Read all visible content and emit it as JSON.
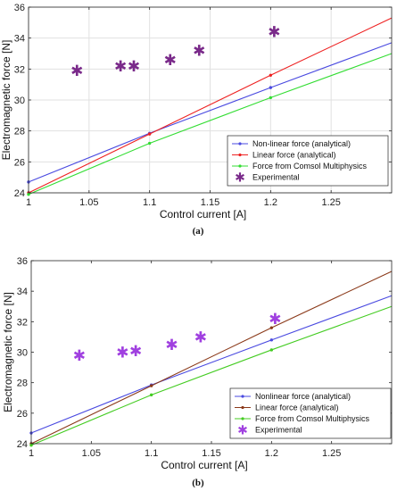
{
  "chart_data": [
    {
      "type": "line",
      "caption": "(a)",
      "xlabel": "Control current [A]",
      "ylabel": "Electromagnetic force [N]",
      "xlim": [
        1.0,
        1.3
      ],
      "ylim": [
        24,
        36
      ],
      "xticks": [
        "1",
        "1.05",
        "1.1",
        "1.15",
        "1.2",
        "1.25"
      ],
      "yticks": [
        "24",
        "26",
        "28",
        "30",
        "32",
        "34",
        "36"
      ],
      "grid": true,
      "legend_position": "lower-right",
      "series": [
        {
          "name": "Non-linear force (analytical)",
          "color": "#4a4ae0",
          "style": "line",
          "x": [
            1.0,
            1.1,
            1.2,
            1.3
          ],
          "y": [
            24.7,
            27.85,
            30.8,
            33.7
          ]
        },
        {
          "name": "Linear force (analytical)",
          "color": "#ee2222",
          "style": "line",
          "x": [
            1.0,
            1.1,
            1.2,
            1.3
          ],
          "y": [
            24.0,
            27.8,
            31.6,
            35.3
          ]
        },
        {
          "name": "Force from Comsol Multiphysics",
          "color": "#33dd33",
          "style": "line",
          "x": [
            1.0,
            1.1,
            1.2,
            1.3
          ],
          "y": [
            23.9,
            27.2,
            30.15,
            33.0
          ]
        },
        {
          "name": "Experimental",
          "color": "#7a2a8a",
          "style": "star",
          "x": [
            1.04,
            1.076,
            1.087,
            1.117,
            1.141,
            1.203
          ],
          "y": [
            31.9,
            32.2,
            32.2,
            32.6,
            33.2,
            34.4
          ]
        }
      ]
    },
    {
      "type": "line",
      "caption": "(b)",
      "xlabel": "Control current [A]",
      "ylabel": "Electromagnetic force [N]",
      "xlim": [
        1.0,
        1.3
      ],
      "ylim": [
        24,
        36
      ],
      "xticks": [
        "1",
        "1.05",
        "1.1",
        "1.15",
        "1.2",
        "1.25"
      ],
      "yticks": [
        "24",
        "26",
        "28",
        "30",
        "32",
        "34",
        "36"
      ],
      "grid": false,
      "legend_position": "lower-right",
      "series": [
        {
          "name": "Nonlinear force (analytical)",
          "color": "#4a4ae0",
          "style": "line",
          "x": [
            1.0,
            1.1,
            1.2,
            1.3
          ],
          "y": [
            24.7,
            27.85,
            30.8,
            33.7
          ]
        },
        {
          "name": "Linear force (analytical)",
          "color": "#8b3a1a",
          "style": "line",
          "x": [
            1.0,
            1.1,
            1.2,
            1.3
          ],
          "y": [
            24.0,
            27.8,
            31.6,
            35.3
          ]
        },
        {
          "name": "Force from Comsol Multiphysics",
          "color": "#44cc22",
          "style": "line",
          "x": [
            1.0,
            1.1,
            1.2,
            1.3
          ],
          "y": [
            23.9,
            27.2,
            30.15,
            33.0
          ]
        },
        {
          "name": "Experimental",
          "color": "#a040e0",
          "style": "star",
          "x": [
            1.04,
            1.076,
            1.087,
            1.117,
            1.141,
            1.203
          ],
          "y": [
            29.8,
            30.0,
            30.1,
            30.5,
            31.0,
            32.2
          ]
        }
      ]
    }
  ]
}
